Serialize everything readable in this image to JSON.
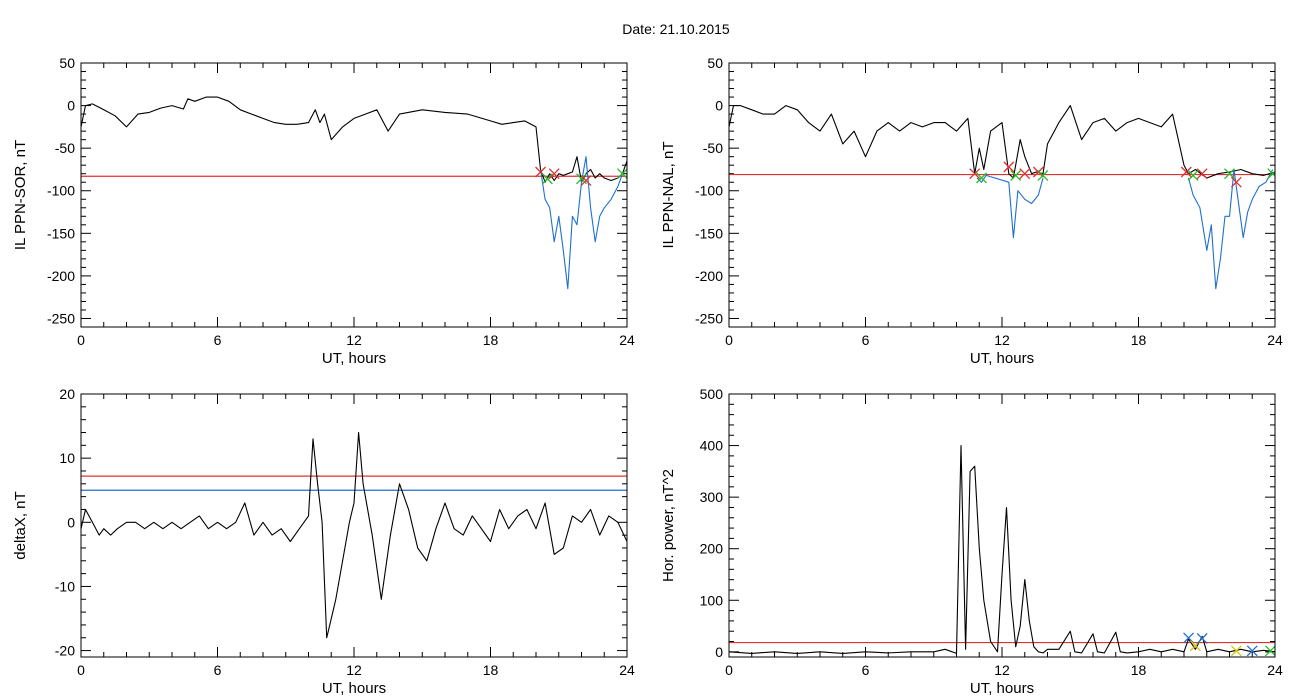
{
  "page": {
    "title": "Date:  21.10.2015"
  },
  "colors": {
    "black": "#000000",
    "red": "#e03030",
    "blue": "#1f6fd0",
    "green": "#22bb22",
    "yellow": "#d6c400"
  },
  "chart_data": [
    {
      "id": "p1",
      "type": "line",
      "xlabel": "UT, hours",
      "ylabel": "IL PPN-SOR, nT",
      "xlim": [
        0,
        24
      ],
      "ylim": [
        -260,
        50
      ],
      "xticks": [
        0,
        6,
        12,
        18,
        24
      ],
      "yticks": [
        -250,
        -200,
        -150,
        -100,
        -50,
        0,
        50
      ],
      "series": [
        {
          "color": "#000000",
          "x": [
            0,
            0.2,
            0.5,
            1,
            1.5,
            2,
            2.5,
            3,
            3.5,
            4,
            4.5,
            4.7,
            5,
            5.5,
            6,
            6.5,
            7,
            7.5,
            8,
            8.5,
            9,
            9.5,
            10,
            10.3,
            10.5,
            10.7,
            11,
            11.5,
            12,
            12.5,
            13,
            13.5,
            14,
            15,
            16,
            17,
            18,
            18.5,
            19,
            19.5,
            20,
            20.2,
            20.4,
            20.6,
            20.8,
            21,
            21.2,
            21.4,
            21.6,
            21.8,
            22,
            22.2,
            22.4,
            22.6,
            22.8,
            23,
            23.3,
            23.6,
            23.8,
            24
          ],
          "y": [
            -25,
            0,
            2,
            -5,
            -12,
            -25,
            -10,
            -8,
            -3,
            0,
            -4,
            8,
            5,
            10,
            10,
            5,
            -5,
            -10,
            -15,
            -20,
            -22,
            -22,
            -20,
            -5,
            -20,
            -10,
            -40,
            -25,
            -15,
            -10,
            -5,
            -30,
            -10,
            -5,
            -8,
            -10,
            -18,
            -22,
            -20,
            -18,
            -25,
            -75,
            -90,
            -80,
            -88,
            -80,
            -82,
            -80,
            -78,
            -60,
            -90,
            -80,
            -75,
            -85,
            -80,
            -85,
            -88,
            -85,
            -80,
            -65
          ]
        },
        {
          "color": "#1f6fd0",
          "x": [
            20.2,
            20.4,
            20.6,
            20.8,
            21,
            21.2,
            21.4,
            21.6,
            21.8,
            22,
            22.2,
            22.4,
            22.6,
            22.8,
            23,
            23.3,
            23.6,
            23.8
          ],
          "y": [
            -75,
            -110,
            -120,
            -160,
            -130,
            -170,
            -215,
            -130,
            -140,
            -90,
            -60,
            -120,
            -160,
            -130,
            -120,
            -110,
            -95,
            -80
          ]
        }
      ],
      "hlines": [
        {
          "y": -83,
          "color": "#e03030"
        }
      ],
      "markers": [
        {
          "x": 20.2,
          "y": -78,
          "color": "#e03030"
        },
        {
          "x": 20.5,
          "y": -86,
          "color": "#22bb22"
        },
        {
          "x": 20.8,
          "y": -80,
          "color": "#e03030"
        },
        {
          "x": 22.0,
          "y": -86,
          "color": "#22bb22"
        },
        {
          "x": 22.2,
          "y": -88,
          "color": "#e03030"
        },
        {
          "x": 23.8,
          "y": -80,
          "color": "#22bb22"
        }
      ]
    },
    {
      "id": "p2",
      "type": "line",
      "xlabel": "UT, hours",
      "ylabel": "IL PPN-NAL, nT",
      "xlim": [
        0,
        24
      ],
      "ylim": [
        -260,
        50
      ],
      "xticks": [
        0,
        6,
        12,
        18,
        24
      ],
      "yticks": [
        -250,
        -200,
        -150,
        -100,
        -50,
        0,
        50
      ],
      "series": [
        {
          "color": "#000000",
          "x": [
            0,
            0.2,
            0.5,
            1,
            1.5,
            2,
            2.5,
            3,
            3.5,
            4,
            4.5,
            5,
            5.5,
            6,
            6.5,
            7,
            7.5,
            8,
            8.5,
            9,
            9.5,
            10,
            10.5,
            10.8,
            11,
            11.2,
            11.5,
            12,
            12.3,
            12.5,
            12.8,
            13,
            13.3,
            13.5,
            13.8,
            14,
            14.5,
            15,
            15.5,
            16,
            16.5,
            17,
            17.5,
            18,
            18.5,
            19,
            19.5,
            20,
            20.2,
            20.5,
            21,
            21.5,
            22,
            22.5,
            23,
            23.5,
            24
          ],
          "y": [
            -25,
            0,
            0,
            -5,
            -10,
            -10,
            0,
            -5,
            -20,
            -30,
            -10,
            -45,
            -30,
            -60,
            -30,
            -20,
            -30,
            -20,
            -25,
            -20,
            -20,
            -30,
            -15,
            -80,
            -50,
            -75,
            -30,
            -20,
            -80,
            -85,
            -40,
            -60,
            -80,
            -78,
            -80,
            -45,
            -20,
            0,
            -40,
            -20,
            -15,
            -30,
            -20,
            -15,
            -20,
            -25,
            -10,
            -70,
            -80,
            -75,
            -85,
            -80,
            -78,
            -75,
            -80,
            -82,
            -78
          ]
        },
        {
          "color": "#1f6fd0",
          "x": [
            10.9,
            11.1,
            11.3,
            12.3,
            12.5,
            12.7,
            13.0,
            13.3,
            13.6,
            13.8
          ],
          "y": [
            -85,
            -90,
            -82,
            -90,
            -155,
            -100,
            -110,
            -115,
            -105,
            -85
          ]
        },
        {
          "color": "#1f6fd0",
          "x": [
            20.2,
            20.4,
            20.7,
            21,
            21.2,
            21.4,
            21.6,
            21.8,
            22,
            22.2,
            22.4,
            22.6,
            22.8,
            23,
            23.3,
            23.6,
            23.9
          ],
          "y": [
            -85,
            -105,
            -120,
            -170,
            -140,
            -215,
            -180,
            -130,
            -130,
            -75,
            -115,
            -155,
            -125,
            -110,
            -95,
            -90,
            -75
          ]
        }
      ],
      "hlines": [
        {
          "y": -81,
          "color": "#e03030"
        }
      ],
      "markers": [
        {
          "x": 10.8,
          "y": -80,
          "color": "#e03030"
        },
        {
          "x": 11.1,
          "y": -85,
          "color": "#22bb22"
        },
        {
          "x": 12.3,
          "y": -72,
          "color": "#e03030"
        },
        {
          "x": 12.6,
          "y": -82,
          "color": "#22bb22"
        },
        {
          "x": 13.0,
          "y": -80,
          "color": "#e03030"
        },
        {
          "x": 13.6,
          "y": -78,
          "color": "#e03030"
        },
        {
          "x": 13.8,
          "y": -82,
          "color": "#22bb22"
        },
        {
          "x": 20.1,
          "y": -78,
          "color": "#e03030"
        },
        {
          "x": 20.4,
          "y": -82,
          "color": "#22bb22"
        },
        {
          "x": 20.8,
          "y": -80,
          "color": "#e03030"
        },
        {
          "x": 22.0,
          "y": -80,
          "color": "#22bb22"
        },
        {
          "x": 22.3,
          "y": -90,
          "color": "#e03030"
        },
        {
          "x": 23.9,
          "y": -80,
          "color": "#22bb22"
        }
      ]
    },
    {
      "id": "p3",
      "type": "line",
      "xlabel": "UT, hours",
      "ylabel": "deltaX, nT",
      "xlim": [
        0,
        24
      ],
      "ylim": [
        -21,
        20
      ],
      "xticks": [
        0,
        6,
        12,
        18,
        24
      ],
      "yticks": [
        -20,
        -10,
        0,
        10,
        20
      ],
      "series": [
        {
          "color": "#000000",
          "x": [
            0,
            0.2,
            0.5,
            0.8,
            1,
            1.3,
            1.6,
            2,
            2.4,
            2.8,
            3.2,
            3.6,
            4,
            4.4,
            4.8,
            5.2,
            5.6,
            6,
            6.4,
            6.8,
            7.2,
            7.6,
            8,
            8.4,
            8.8,
            9.2,
            9.6,
            10,
            10.2,
            10.4,
            10.6,
            10.8,
            11,
            11.2,
            11.5,
            11.8,
            12,
            12.2,
            12.4,
            12.8,
            13.2,
            13.6,
            14,
            14.4,
            14.8,
            15.2,
            15.6,
            16,
            16.4,
            16.8,
            17.2,
            17.6,
            18,
            18.4,
            18.8,
            19.2,
            19.6,
            20,
            20.4,
            20.8,
            21.2,
            21.6,
            22,
            22.4,
            22.8,
            23.2,
            23.6,
            24
          ],
          "y": [
            -1,
            2,
            0,
            -2,
            -1,
            -2,
            -1,
            0,
            0,
            -1,
            0,
            -1,
            0,
            -1,
            0,
            1,
            -1,
            0,
            -1,
            0,
            3,
            -2,
            0,
            -2,
            -1,
            -3,
            -1,
            1,
            13,
            6,
            0,
            -18,
            -15,
            -12,
            -6,
            0,
            3,
            14,
            6,
            -2,
            -12,
            -2,
            6,
            2,
            -4,
            -6,
            -1,
            3,
            -1,
            -2,
            1,
            -1,
            -3,
            2,
            -1,
            1,
            2,
            -1,
            3,
            -5,
            -4,
            1,
            0,
            2,
            -2,
            1,
            0,
            -3
          ]
        }
      ],
      "hlines": [
        {
          "y": 7.2,
          "color": "#e03030"
        },
        {
          "y": 5,
          "color": "#1f6fd0"
        }
      ],
      "markers": []
    },
    {
      "id": "p4",
      "type": "line",
      "xlabel": "UT, hours",
      "ylabel": "Hor. power, nT^2",
      "xlim": [
        0,
        24
      ],
      "ylim": [
        -10,
        500
      ],
      "xticks": [
        0,
        6,
        12,
        18,
        24
      ],
      "yticks": [
        0,
        100,
        200,
        300,
        400,
        500
      ],
      "series": [
        {
          "color": "#000000",
          "x": [
            0,
            1,
            2,
            3,
            4,
            5,
            6,
            7,
            8,
            9,
            9.5,
            10,
            10.2,
            10.4,
            10.6,
            10.8,
            11,
            11.2,
            11.5,
            11.8,
            12,
            12.2,
            12.4,
            12.6,
            12.8,
            13,
            13.2,
            13.4,
            13.6,
            13.8,
            14,
            14.5,
            15,
            15.2,
            15.5,
            16,
            16.2,
            16.5,
            17,
            17.2,
            17.5,
            18,
            18.5,
            19,
            19.5,
            20,
            20.2,
            20.5,
            20.8,
            21,
            21.5,
            22,
            22.5,
            23,
            23.5,
            24
          ],
          "y": [
            0,
            -3,
            0,
            -3,
            0,
            -3,
            0,
            -2,
            0,
            0,
            5,
            -3,
            400,
            5,
            350,
            360,
            200,
            100,
            20,
            0,
            150,
            280,
            100,
            10,
            50,
            140,
            60,
            10,
            0,
            -2,
            5,
            5,
            40,
            0,
            -2,
            35,
            0,
            -2,
            38,
            0,
            -2,
            0,
            5,
            0,
            5,
            0,
            25,
            5,
            30,
            0,
            5,
            0,
            5,
            0,
            3,
            0
          ]
        }
      ],
      "hlines": [
        {
          "y": 18,
          "color": "#e03030"
        }
      ],
      "markers": [
        {
          "x": 20.2,
          "y": 27,
          "color": "#1f6fd0"
        },
        {
          "x": 20.5,
          "y": 12,
          "color": "#d6c400"
        },
        {
          "x": 20.8,
          "y": 26,
          "color": "#1f6fd0"
        },
        {
          "x": 22.3,
          "y": 2,
          "color": "#d6c400"
        },
        {
          "x": 23.0,
          "y": 2,
          "color": "#1f6fd0"
        },
        {
          "x": 23.8,
          "y": 2,
          "color": "#22bb22"
        }
      ]
    }
  ]
}
